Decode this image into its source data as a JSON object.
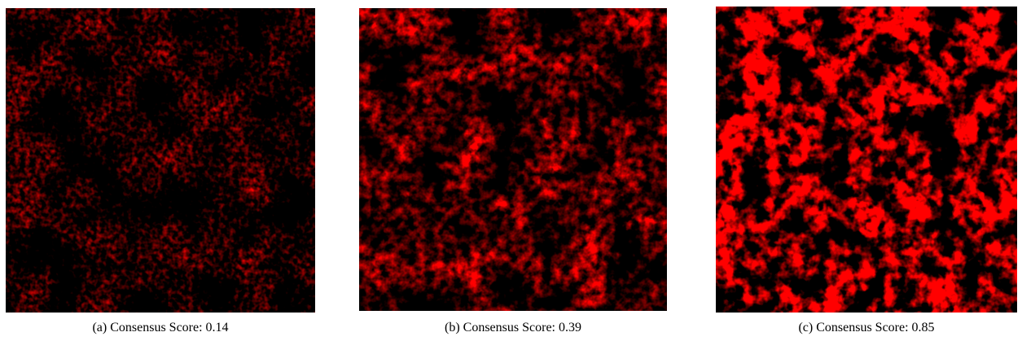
{
  "figure": {
    "panels": [
      {
        "caption": "(a) Consensus Score: 0.14"
      },
      {
        "caption": "(b) Consensus Score: 0.39"
      },
      {
        "caption": "(c) Consensus Score: 0.85"
      }
    ]
  }
}
